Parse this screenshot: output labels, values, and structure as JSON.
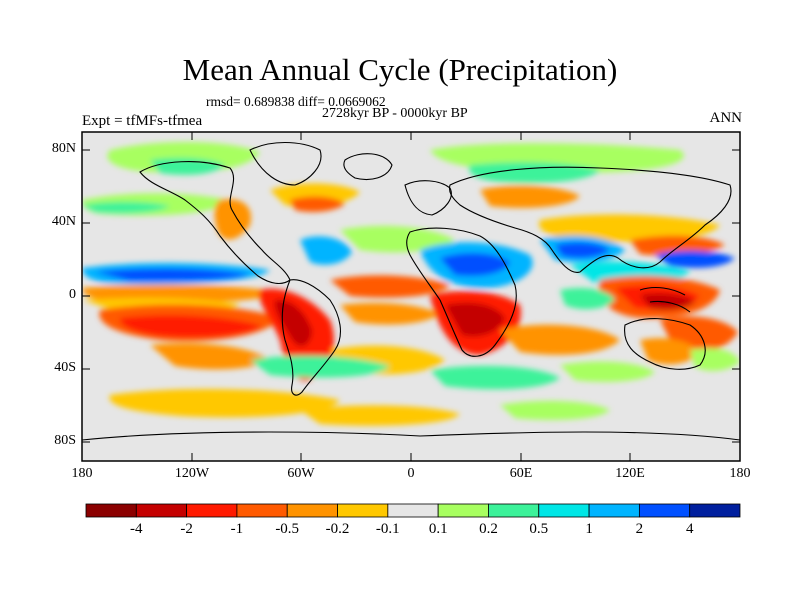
{
  "title": "Mean Annual Cycle (Precipitation)",
  "stats": "rmsd= 0.689838 diff= 0.0669062",
  "period": "2728kyr BP - 0000kyr BP",
  "experiment": "Expt = tfMFs-tfmea",
  "season": "ANN",
  "y_ticks": [
    "80N",
    "40N",
    "0",
    "40S",
    "80S"
  ],
  "x_ticks": [
    "180",
    "120W",
    "60W",
    "0",
    "60E",
    "120E",
    "180"
  ],
  "colorbar": {
    "colors": [
      "#8b0000",
      "#c40000",
      "#ff1a00",
      "#ff5a00",
      "#ff9300",
      "#ffc800",
      "#e6e6e6",
      "#a8ff60",
      "#3cf29a",
      "#00e6e6",
      "#00b4ff",
      "#0050ff",
      "#001f9e"
    ],
    "labels": [
      "-4",
      "-2",
      "-1",
      "-0.5",
      "-0.2",
      "-0.1",
      "0.1",
      "0.2",
      "0.5",
      "1",
      "2",
      "4"
    ]
  }
}
